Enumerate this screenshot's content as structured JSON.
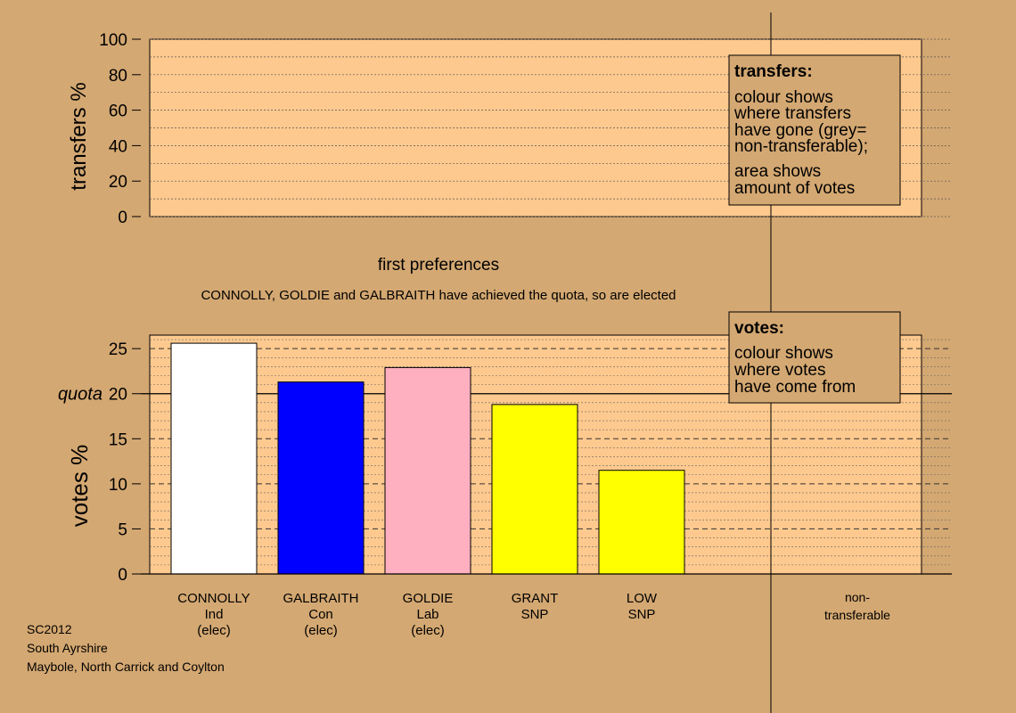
{
  "colors": {
    "background": "#d4a872",
    "plot_area": "#fec98e",
    "note_box": "#d4a872"
  },
  "chart_data": [
    {
      "type": "bar",
      "panel": "transfers",
      "ylabel": "transfers %",
      "ylim": [
        0,
        100
      ],
      "yticks": [
        0,
        20,
        40,
        60,
        80,
        100
      ],
      "categories": [],
      "values": [],
      "note": {
        "title": "transfers:",
        "lines": [
          "colour shows",
          "where transfers",
          "have gone (grey=",
          "non-transferable);",
          "area shows",
          "amount of votes"
        ]
      }
    },
    {
      "type": "bar",
      "panel": "votes",
      "title": "first preferences",
      "subtitle": "CONNOLLY, GOLDIE and GALBRAITH have achieved the quota, so are elected",
      "ylabel": "votes %",
      "ylim": [
        0,
        26.5
      ],
      "yticks": [
        0,
        5,
        10,
        15,
        20,
        25
      ],
      "quota": 20,
      "quota_label": "quota",
      "bar_colors": [
        "#ffffff",
        "#0000ff",
        "#ffb0c0",
        "#ffff00",
        "#ffff00"
      ],
      "categories": [
        {
          "name": "CONNOLLY",
          "party": "Ind",
          "status": "(elec)"
        },
        {
          "name": "GALBRAITH",
          "party": "Con",
          "status": "(elec)"
        },
        {
          "name": "GOLDIE",
          "party": "Lab",
          "status": "(elec)"
        },
        {
          "name": "GRANT",
          "party": "SNP",
          "status": ""
        },
        {
          "name": "LOW",
          "party": "SNP",
          "status": ""
        }
      ],
      "values": [
        25.6,
        21.3,
        22.9,
        18.8,
        11.5
      ],
      "nontransferable_label": [
        "non-",
        "transferable"
      ],
      "note": {
        "title": "votes:",
        "lines": [
          "colour shows",
          "where votes",
          "have come from"
        ]
      }
    }
  ],
  "footer": {
    "lines": [
      "SC2012",
      "South Ayrshire",
      "Maybole, North Carrick and Coylton"
    ]
  }
}
